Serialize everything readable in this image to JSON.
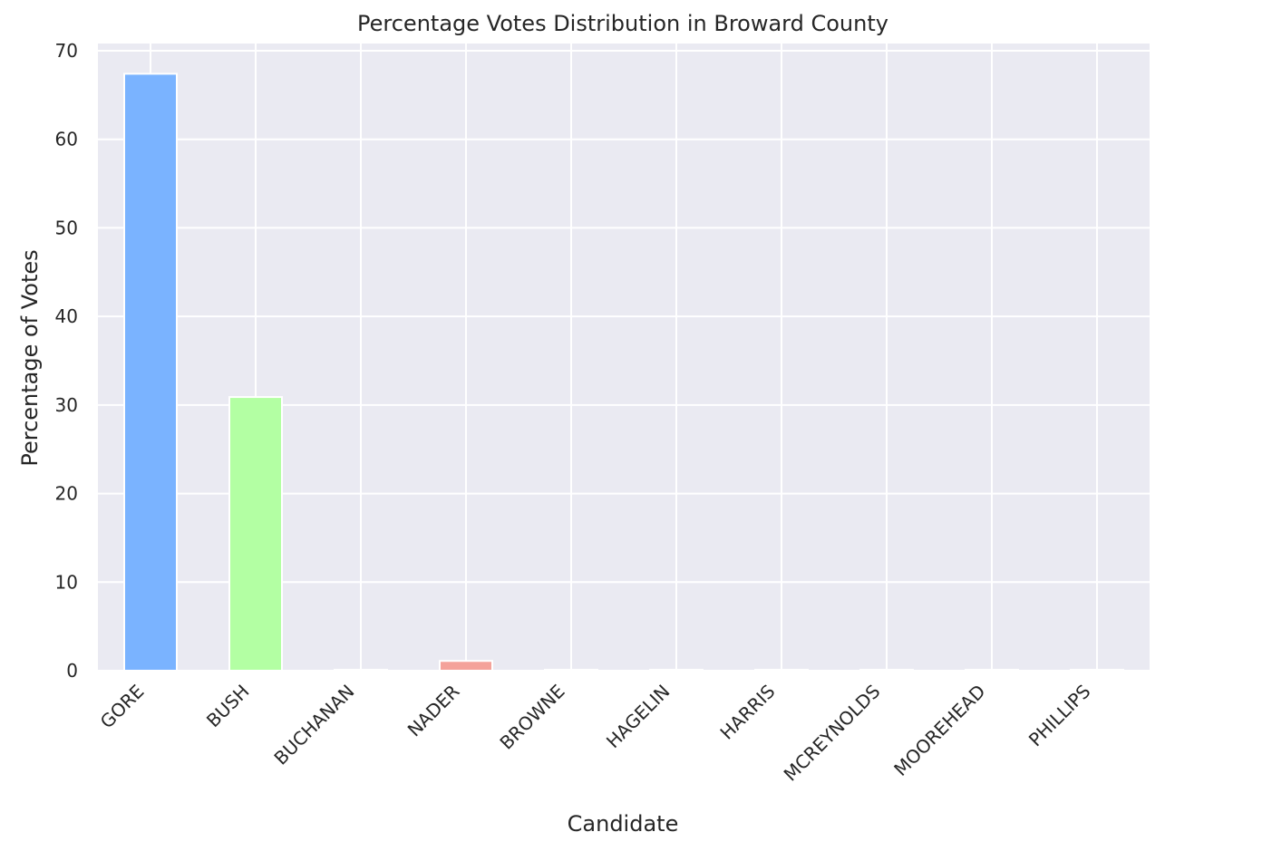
{
  "chart_data": {
    "type": "bar",
    "title": "Percentage Votes Distribution in Broward County",
    "xlabel": "Candidate",
    "ylabel": "Percentage of Votes",
    "categories": [
      "GORE",
      "BUSH",
      "BUCHANAN",
      "NADER",
      "BROWNE",
      "HAGELIN",
      "HARRIS",
      "MCREYNOLDS",
      "MOOREHEAD",
      "PHILLIPS"
    ],
    "values": [
      67.4,
      30.9,
      0.1,
      1.1,
      0.1,
      0.0,
      0.0,
      0.0,
      0.0,
      0.0
    ],
    "colors": [
      "#7ab3ff",
      "#b3ffa3",
      "#cfe3ff",
      "#f4a29a",
      "#cfe3ff",
      "#cfe3ff",
      "#cfe3ff",
      "#cfe3ff",
      "#cfe3ff",
      "#cfe3ff"
    ],
    "ylim": [
      0,
      70
    ],
    "yticks": [
      0,
      10,
      20,
      30,
      40,
      50,
      60,
      70
    ],
    "grid": true,
    "background": "#eaeaf2"
  }
}
